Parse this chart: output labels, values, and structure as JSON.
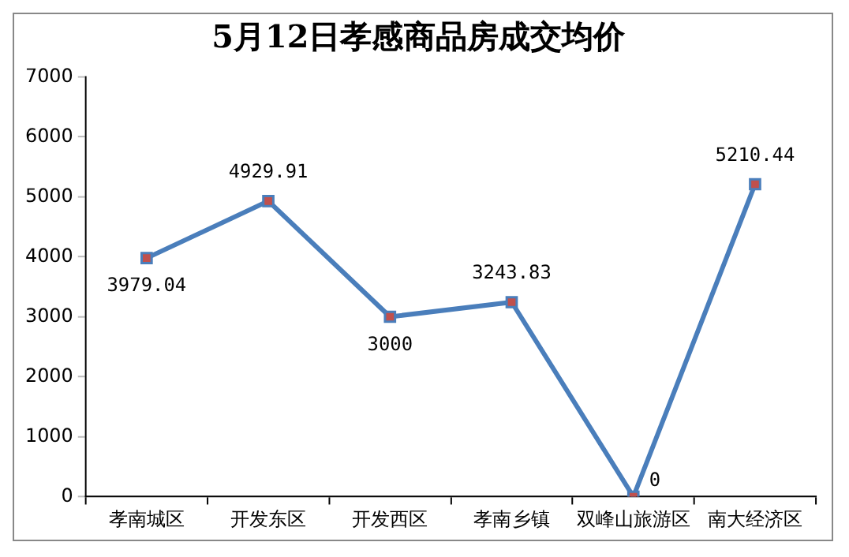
{
  "chart_data": {
    "type": "line",
    "title": "5月12日孝感商品房成交均价",
    "categories": [
      "孝南城区",
      "开发东区",
      "开发西区",
      "孝南乡镇",
      "双峰山旅游区",
      "南大经济区"
    ],
    "series": [
      {
        "color": "#4a7ebb",
        "values": [
          3979.04,
          4929.91,
          3000,
          3243.83,
          0,
          5210.44
        ]
      }
    ],
    "ylim": [
      0,
      7000
    ],
    "yticks": [
      0,
      1000,
      2000,
      3000,
      4000,
      5000,
      6000,
      7000
    ],
    "grid": false,
    "legend": false,
    "marker": "square",
    "line_style": "solid",
    "data_labels": true
  }
}
